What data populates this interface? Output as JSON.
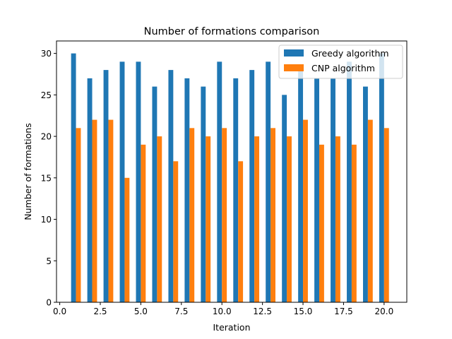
{
  "chart_data": {
    "type": "bar",
    "title": "Number of formations comparison",
    "xlabel": "Iteration",
    "ylabel": "Number of formations",
    "xlim": [
      -0.2,
      21.4
    ],
    "ylim": [
      0,
      31.5
    ],
    "xticks": [
      0.0,
      2.5,
      5.0,
      7.5,
      10.0,
      12.5,
      15.0,
      17.5,
      20.0
    ],
    "xtick_labels": [
      "0.0",
      "2.5",
      "5.0",
      "7.5",
      "10.0",
      "12.5",
      "15.0",
      "17.5",
      "20.0"
    ],
    "yticks": [
      0,
      5,
      10,
      15,
      20,
      25,
      30
    ],
    "ytick_labels": [
      "0",
      "5",
      "10",
      "15",
      "20",
      "25",
      "30"
    ],
    "grid": false,
    "legend_position": "top-right",
    "x": [
      1,
      2,
      3,
      4,
      5,
      6,
      7,
      8,
      9,
      10,
      11,
      12,
      13,
      14,
      15,
      16,
      17,
      18,
      19,
      20
    ],
    "series": [
      {
        "name": "Greedy algorithm",
        "color": "#1f77b4",
        "values": [
          30,
          27,
          28,
          29,
          29,
          26,
          28,
          27,
          26,
          29,
          27,
          28,
          29,
          25,
          28,
          27,
          27,
          29,
          26,
          30
        ]
      },
      {
        "name": "CNP algorithm",
        "color": "#ff7f0e",
        "values": [
          21,
          22,
          22,
          15,
          19,
          20,
          17,
          21,
          20,
          21,
          17,
          20,
          21,
          20,
          22,
          19,
          20,
          19,
          22,
          21
        ]
      }
    ]
  }
}
